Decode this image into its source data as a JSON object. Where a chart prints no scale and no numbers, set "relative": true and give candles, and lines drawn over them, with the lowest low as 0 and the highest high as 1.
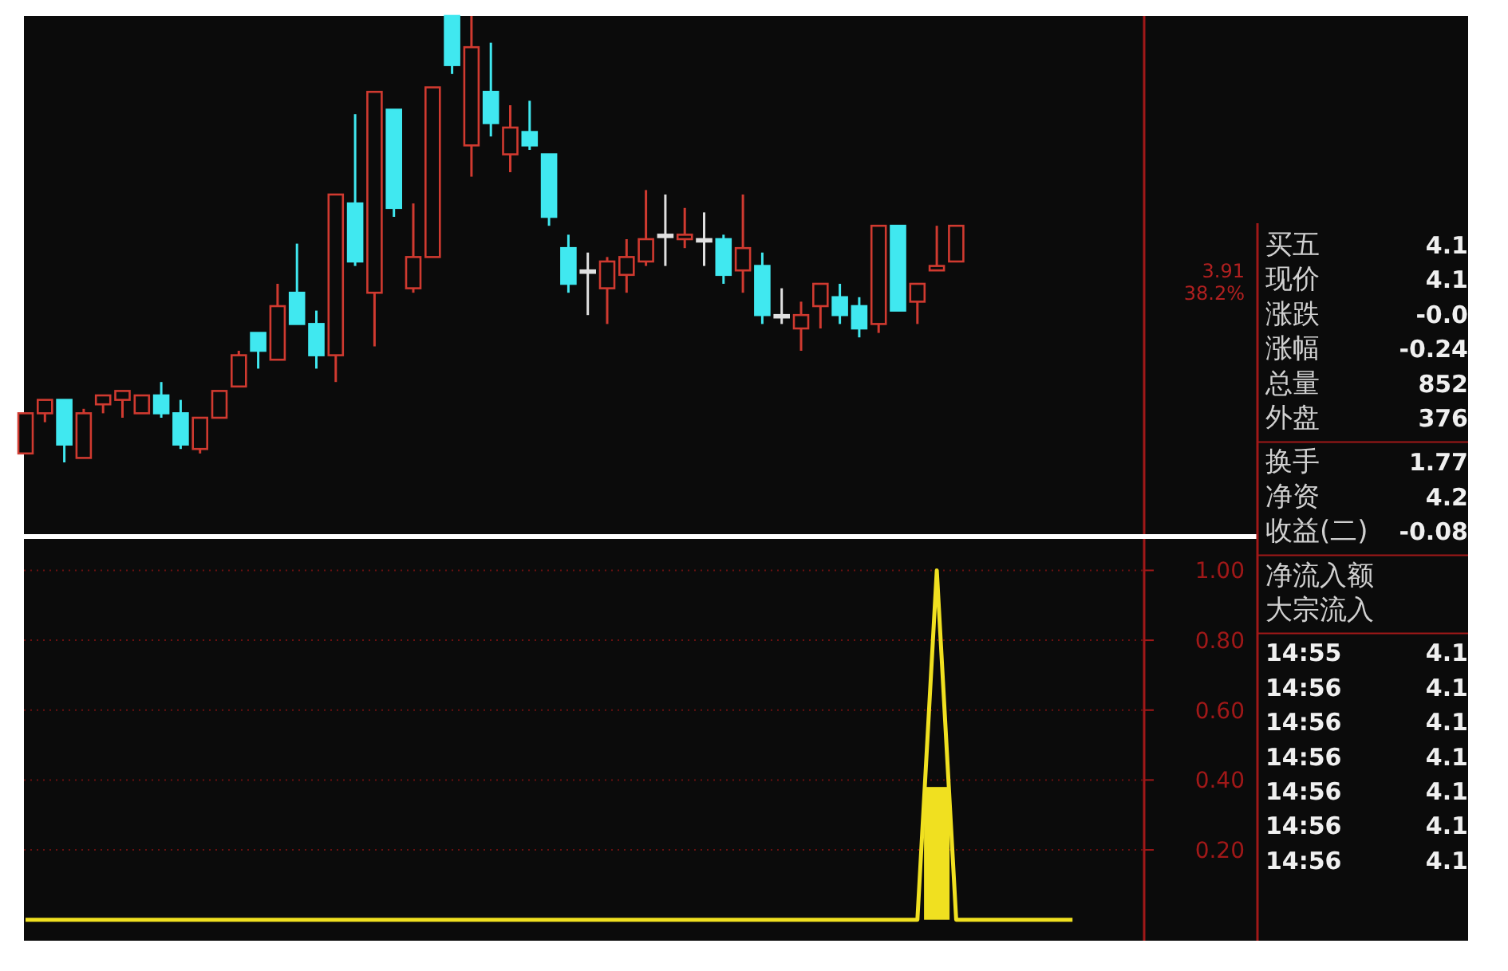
{
  "chart_data": [
    {
      "type": "candlestick",
      "relative": true,
      "categories": [
        null,
        null,
        null,
        null,
        null,
        null,
        null,
        null,
        null,
        null,
        null,
        null,
        null,
        null,
        null,
        null,
        null,
        null,
        null,
        null,
        null,
        null,
        null,
        null,
        null,
        null,
        null,
        null,
        null,
        null,
        null,
        null,
        null,
        null,
        null,
        null,
        null,
        null,
        null,
        null,
        null,
        null,
        null,
        null,
        null,
        null,
        null,
        null,
        null
      ],
      "ohlc": [
        [
          0.02,
          0.11,
          0.02,
          0.11
        ],
        [
          0.11,
          0.14,
          0.09,
          0.14
        ],
        [
          0.14,
          0.14,
          0,
          0.04
        ],
        [
          0.01,
          0.12,
          0.01,
          0.11
        ],
        [
          0.13,
          0.15,
          0.11,
          0.15
        ],
        [
          0.14,
          0.16,
          0.1,
          0.16
        ],
        [
          0.11,
          0.15,
          0.11,
          0.15
        ],
        [
          0.15,
          0.18,
          0.1,
          0.11
        ],
        [
          0.11,
          0.14,
          0.03,
          0.04
        ],
        [
          0.03,
          0.1,
          0.02,
          0.1
        ],
        [
          0.1,
          0.16,
          0.1,
          0.16
        ],
        [
          0.17,
          0.25,
          0.17,
          0.24
        ],
        [
          0.29,
          0.29,
          0.21,
          0.25
        ],
        [
          0.23,
          0.4,
          0.23,
          0.35
        ],
        [
          0.38,
          0.49,
          0.31,
          0.31
        ],
        [
          0.31,
          0.34,
          0.21,
          0.24
        ],
        [
          0.24,
          0.6,
          0.18,
          0.6
        ],
        [
          0.58,
          0.78,
          0.44,
          0.45
        ],
        [
          0.38,
          0.83,
          0.26,
          0.83
        ],
        [
          0.79,
          0.79,
          0.55,
          0.57
        ],
        [
          0.39,
          0.58,
          0.38,
          0.46
        ],
        [
          0.46,
          0.84,
          0.46,
          0.84
        ],
        [
          1,
          1,
          0.87,
          0.89
        ],
        [
          0.71,
          1,
          0.64,
          0.93
        ],
        [
          0.83,
          0.94,
          0.73,
          0.76
        ],
        [
          0.69,
          0.8,
          0.65,
          0.75
        ],
        [
          0.74,
          0.81,
          0.7,
          0.71
        ],
        [
          0.69,
          0.69,
          0.53,
          0.55
        ],
        [
          0.48,
          0.51,
          0.38,
          0.4
        ],
        [
          0.43,
          0.47,
          0.33,
          0.43
        ],
        [
          0.39,
          0.46,
          0.31,
          0.45
        ],
        [
          0.42,
          0.5,
          0.38,
          0.46
        ],
        [
          0.45,
          0.61,
          0.44,
          0.5
        ],
        [
          0.51,
          0.6,
          0.44,
          0.51
        ],
        [
          0.5,
          0.57,
          0.48,
          0.51
        ],
        [
          0.5,
          0.56,
          0.44,
          0.5
        ],
        [
          0.5,
          0.51,
          0.4,
          0.42
        ],
        [
          0.43,
          0.6,
          0.38,
          0.48
        ],
        [
          0.44,
          0.47,
          0.31,
          0.33
        ],
        [
          0.33,
          0.39,
          0.31,
          0.33
        ],
        [
          0.3,
          0.36,
          0.25,
          0.33
        ],
        [
          0.35,
          0.4,
          0.3,
          0.4
        ],
        [
          0.37,
          0.4,
          0.31,
          0.33
        ],
        [
          0.35,
          0.37,
          0.28,
          0.3
        ],
        [
          0.31,
          0.53,
          0.29,
          0.53
        ],
        [
          0.53,
          0.53,
          0.34,
          0.34
        ],
        [
          0.36,
          0.4,
          0.31,
          0.4
        ],
        [
          0.43,
          0.53,
          0.43,
          0.44
        ],
        [
          0.45,
          0.53,
          0.45,
          0.53
        ]
      ],
      "colors": [
        "#d03a30",
        "#d03a30",
        "#40e8f0",
        "#d03a30",
        "#d03a30",
        "#d03a30",
        "#d03a30",
        "#40e8f0",
        "#40e8f0",
        "#d03a30",
        "#d03a30",
        "#d03a30",
        "#40e8f0",
        "#d03a30",
        "#40e8f0",
        "#40e8f0",
        "#d03a30",
        "#40e8f0",
        "#d03a30",
        "#40e8f0",
        "#d03a30",
        "#d03a30",
        "#40e8f0",
        "#d03a30",
        "#40e8f0",
        "#d03a30",
        "#40e8f0",
        "#40e8f0",
        "#40e8f0",
        "#e0e0e0",
        "#d03a30",
        "#d03a30",
        "#d03a30",
        "#e0e0e0",
        "#d03a30",
        "#e0e0e0",
        "#40e8f0",
        "#d03a30",
        "#40e8f0",
        "#e0e0e0",
        "#d03a30",
        "#d03a30",
        "#40e8f0",
        "#40e8f0",
        "#d03a30",
        "#40e8f0",
        "#d03a30",
        "#d03a30",
        "#d03a30"
      ],
      "annotations": [
        "3.91",
        "38.2%"
      ]
    },
    {
      "type": "line",
      "categories": [
        null,
        null,
        null,
        null,
        null,
        null,
        null,
        null,
        null,
        null,
        null,
        null,
        null,
        null,
        null,
        null,
        null,
        null,
        null,
        null,
        null,
        null,
        null,
        null,
        null,
        null,
        null,
        null,
        null,
        null,
        null,
        null,
        null,
        null,
        null,
        null,
        null,
        null,
        null,
        null,
        null,
        null,
        null,
        null,
        null,
        null,
        null,
        null,
        null,
        null,
        null,
        null,
        null,
        null,
        null
      ],
      "series": [
        {
          "type": "line",
          "color": "#f0e020",
          "values": [
            0,
            0,
            0,
            0,
            0,
            0,
            0,
            0,
            0,
            0,
            0,
            0,
            0,
            0,
            0,
            0,
            0,
            0,
            0,
            0,
            0,
            0,
            0,
            0,
            0,
            0,
            0,
            0,
            0,
            0,
            0,
            0,
            0,
            0,
            0,
            0,
            0,
            0,
            0,
            0,
            0,
            0,
            0,
            0,
            0,
            0,
            0,
            1.0,
            0,
            0,
            0,
            0,
            0,
            0,
            0
          ]
        },
        {
          "type": "bar",
          "color": "#f0e020",
          "values": [
            null,
            null,
            null,
            null,
            null,
            null,
            null,
            null,
            null,
            null,
            null,
            null,
            null,
            null,
            null,
            null,
            null,
            null,
            null,
            null,
            null,
            null,
            null,
            null,
            null,
            null,
            null,
            null,
            null,
            null,
            null,
            null,
            null,
            null,
            null,
            null,
            null,
            null,
            null,
            null,
            null,
            null,
            null,
            null,
            null,
            null,
            null,
            0.38,
            null,
            null,
            null,
            null,
            null,
            null,
            null
          ]
        }
      ],
      "ylim": [
        -0.06,
        1.09
      ],
      "yticks": [
        {
          "value": 0.2,
          "label": "0.20"
        },
        {
          "value": 0.4,
          "label": "0.40"
        },
        {
          "value": 0.6,
          "label": "0.60"
        },
        {
          "value": 0.8,
          "label": "0.80"
        },
        {
          "value": 1.0,
          "label": "1.00"
        }
      ],
      "grid": "y",
      "tick_labels": "y"
    },
    {
      "type": "other",
      "categories": [
        "买五",
        "现价",
        "涨跌",
        "涨幅",
        "总量",
        "外盘",
        "换手",
        "净资",
        "收益(二)",
        "净流入额",
        "大宗流入",
        "14:55",
        "14:56",
        "14:56",
        "14:56",
        "14:56",
        "14:56",
        "14:56"
      ],
      "value_labels": [
        "4.1",
        "4.1",
        "-0.0",
        "-0.24",
        "852",
        "376",
        "1.77",
        "4.2",
        "-0.08",
        null,
        null,
        "4.1",
        "4.1",
        "4.1",
        "4.1",
        "4.1",
        "4.1",
        "4.1"
      ]
    }
  ]
}
